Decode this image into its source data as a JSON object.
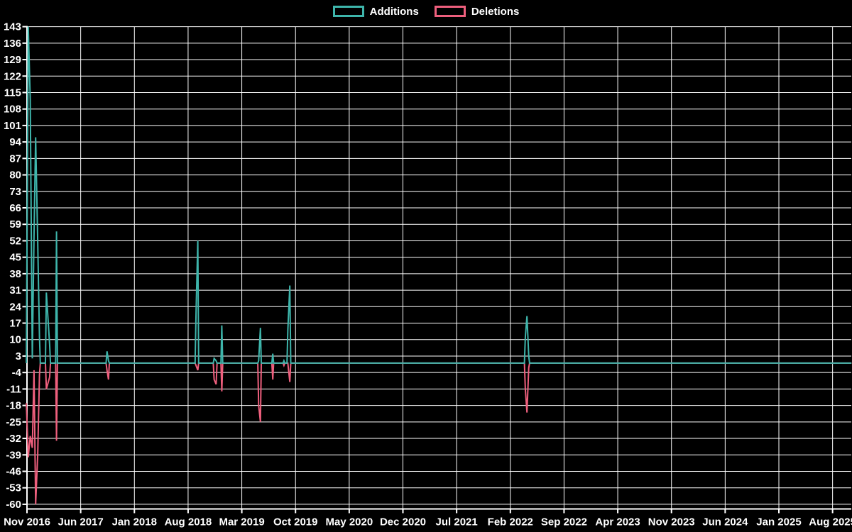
{
  "legend": {
    "items": [
      {
        "label": "Additions",
        "color": "#3eb5ab"
      },
      {
        "label": "Deletions",
        "color": "#ee5f7d"
      }
    ]
  },
  "chart_data": {
    "type": "line",
    "title": "",
    "xlabel": "",
    "ylabel": "",
    "background": "#000000",
    "grid": {
      "on": true,
      "color": "#ffffff"
    },
    "axis_color": "#ffffff",
    "text_color": "#ffffff",
    "legend_position": "top-center",
    "ylim": [
      -62,
      143
    ],
    "y_tick_step": 7,
    "y_ticks": [
      143,
      136,
      129,
      122,
      115,
      108,
      101,
      94,
      87,
      80,
      73,
      66,
      59,
      52,
      45,
      38,
      31,
      24,
      17,
      10,
      3,
      -4,
      -11,
      -18,
      -25,
      -32,
      -39,
      -46,
      -53,
      -60
    ],
    "x_ticks": [
      "Nov 2016",
      "Jun 2017",
      "Jan 2018",
      "Aug 2018",
      "Mar 2019",
      "Oct 2019",
      "May 2020",
      "Dec 2020",
      "Jul 2021",
      "Feb 2022",
      "Sep 2022",
      "Apr 2023",
      "Nov 2023",
      "Jun 2024",
      "Jan 2025",
      "Aug 2025"
    ],
    "x_domain_start": "2016-10-29",
    "x_domain_end": "2025-10-15",
    "series": [
      {
        "name": "Additions",
        "color": "#3eb5ab",
        "baseline": 0
      },
      {
        "name": "Deletions",
        "color": "#ee5f7d",
        "baseline": 0
      }
    ],
    "events": [
      {
        "date": "2016-10-29",
        "additions": 0,
        "deletions": -17
      },
      {
        "date": "2016-11-06",
        "additions": 143,
        "deletions": -40
      },
      {
        "date": "2016-11-14",
        "additions": 112,
        "deletions": -31
      },
      {
        "date": "2016-11-22",
        "additions": 2,
        "deletions": -36
      },
      {
        "date": "2016-11-29",
        "additions": 54,
        "deletions": -3
      },
      {
        "date": "2016-12-05",
        "additions": 96,
        "deletions": -60
      },
      {
        "date": "2016-12-13",
        "additions": 52,
        "deletions": -39
      },
      {
        "date": "2016-12-20",
        "additions": 11,
        "deletions": -5
      },
      {
        "date": "2017-01-17",
        "additions": 30,
        "deletions": -11
      },
      {
        "date": "2017-01-30",
        "additions": 8,
        "deletions": -6
      },
      {
        "date": "2017-02-27",
        "additions": 56,
        "deletions": -33
      },
      {
        "date": "2017-09-14",
        "additions": 5,
        "deletions": -3
      },
      {
        "date": "2017-09-20",
        "additions": 1,
        "deletions": -7
      },
      {
        "date": "2018-09-02",
        "additions": 21,
        "deletions": -1
      },
      {
        "date": "2018-09-09",
        "additions": 52,
        "deletions": -3
      },
      {
        "date": "2018-11-13",
        "additions": 2,
        "deletions": -7
      },
      {
        "date": "2018-11-21",
        "additions": 1,
        "deletions": -9
      },
      {
        "date": "2018-12-13",
        "additions": 16,
        "deletions": -12
      },
      {
        "date": "2019-05-07",
        "additions": 1,
        "deletions": -18
      },
      {
        "date": "2019-05-14",
        "additions": 15,
        "deletions": -25
      },
      {
        "date": "2019-07-02",
        "additions": 4,
        "deletions": -7
      },
      {
        "date": "2019-08-16",
        "additions": 1,
        "deletions": -1
      },
      {
        "date": "2019-09-01",
        "additions": 14,
        "deletions": 0
      },
      {
        "date": "2019-09-09",
        "additions": 33,
        "deletions": -8
      },
      {
        "date": "2022-03-30",
        "additions": 11,
        "deletions": -11
      },
      {
        "date": "2022-04-06",
        "additions": 20,
        "deletions": -21
      },
      {
        "date": "2022-04-13",
        "additions": 3,
        "deletions": -2
      }
    ]
  }
}
